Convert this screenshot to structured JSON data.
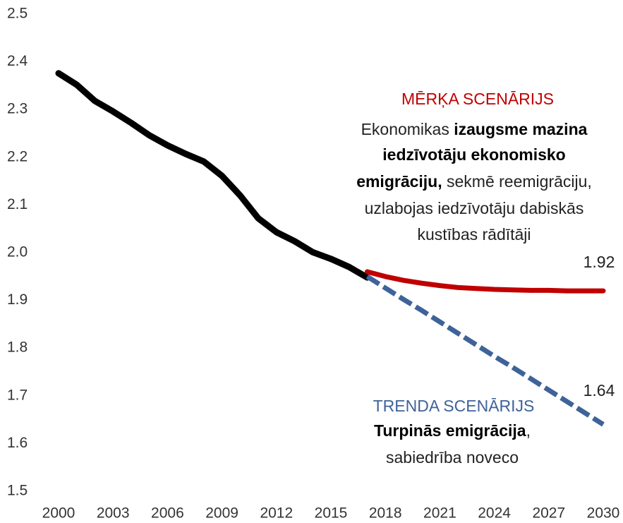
{
  "chart_data": {
    "type": "line",
    "x": [
      2000,
      2001,
      2002,
      2003,
      2004,
      2005,
      2006,
      2007,
      2008,
      2009,
      2010,
      2011,
      2012,
      2013,
      2014,
      2015,
      2016,
      2017,
      2018,
      2019,
      2020,
      2021,
      2022,
      2023,
      2024,
      2025,
      2026,
      2027,
      2028,
      2029,
      2030
    ],
    "series": [
      {
        "color": "#000000",
        "dashed": false,
        "values": [
          2.376,
          2.352,
          2.318,
          2.296,
          2.272,
          2.246,
          2.225,
          2.207,
          2.191,
          2.161,
          2.12,
          2.072,
          2.043,
          2.024,
          2.001,
          1.987,
          1.97,
          1.948,
          null,
          null,
          null,
          null,
          null,
          null,
          null,
          null,
          null,
          null,
          null,
          null,
          null
        ]
      },
      {
        "color": "#c00000",
        "dashed": false,
        "values": [
          null,
          null,
          null,
          null,
          null,
          null,
          null,
          null,
          null,
          null,
          null,
          null,
          null,
          null,
          null,
          null,
          null,
          1.96,
          1.95,
          1.942,
          1.936,
          1.931,
          1.927,
          1.925,
          1.923,
          1.922,
          1.921,
          1.921,
          1.92,
          1.92,
          1.92
        ]
      },
      {
        "color": "#3e6399",
        "dashed": true,
        "values": [
          null,
          null,
          null,
          null,
          null,
          null,
          null,
          null,
          null,
          null,
          null,
          null,
          null,
          null,
          null,
          null,
          null,
          1.95,
          1.926,
          1.902,
          1.879,
          1.855,
          1.831,
          1.807,
          1.783,
          1.76,
          1.736,
          1.712,
          1.688,
          1.664,
          1.64
        ]
      }
    ],
    "xlim": [
      2000,
      2030
    ],
    "xticks": [
      2000,
      2003,
      2006,
      2009,
      2012,
      2015,
      2018,
      2021,
      2024,
      2027,
      2030
    ],
    "ylim": [
      1.5,
      2.5
    ],
    "yticks": [
      1.5,
      1.6,
      1.7,
      1.8,
      1.9,
      {
        "value": 2,
        "label": "2.0"
      },
      2.1,
      2.2,
      2.3,
      2.4,
      2.5
    ],
    "grid": false,
    "annotations": [
      {
        "title": "MĒRĶA SCENĀRIJS",
        "color": "#c00000",
        "lines": [
          [
            {
              "text": "Ekonomikas ",
              "bold": false
            },
            {
              "text": "izaugsme mazina",
              "bold": true
            }
          ],
          [
            {
              "text": "iedzīvotāju ekonomisko",
              "bold": true
            }
          ],
          [
            {
              "text": "emigrāciju,",
              "bold": true
            },
            {
              "text": " sekmē reemigrāciju,",
              "bold": false
            }
          ],
          [
            {
              "text": "uzlabojas iedzīvotāju dabiskās",
              "bold": false
            }
          ],
          [
            {
              "text": "kustības rādītāji",
              "bold": false
            }
          ]
        ]
      },
      {
        "title": "TRENDA SCENĀRIJS",
        "color": "#3e6399",
        "lines": [
          [
            {
              "text": "Turpinās emigrācija",
              "bold": true
            },
            {
              "text": ",",
              "bold": false
            }
          ],
          [
            {
              "text": "sabiedrība noveco",
              "bold": false
            }
          ]
        ]
      }
    ]
  }
}
